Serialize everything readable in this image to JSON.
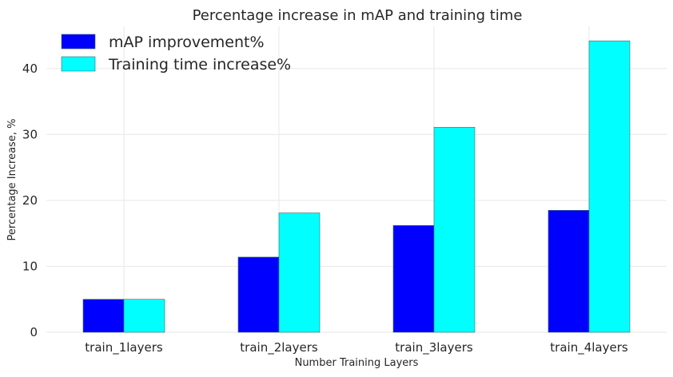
{
  "chart_data": {
    "type": "bar",
    "title": "Percentage increase in mAP and training time",
    "xlabel": "Number Training Layers",
    "ylabel": "Percentage Increase, %",
    "categories": [
      "train_1layers",
      "train_2layers",
      "train_3layers",
      "train_4layers"
    ],
    "series": [
      {
        "name": "mAP improvement%",
        "values": [
          5.0,
          11.4,
          16.2,
          18.5
        ],
        "color": "#0000ff"
      },
      {
        "name": "Training time increase%",
        "values": [
          5.0,
          18.1,
          31.1,
          44.2
        ],
        "color": "#00ffff"
      }
    ],
    "ylim": [
      0,
      46.4
    ],
    "yticks": [
      0,
      10,
      20,
      30,
      40
    ],
    "grid": true,
    "legend": "top-left"
  }
}
